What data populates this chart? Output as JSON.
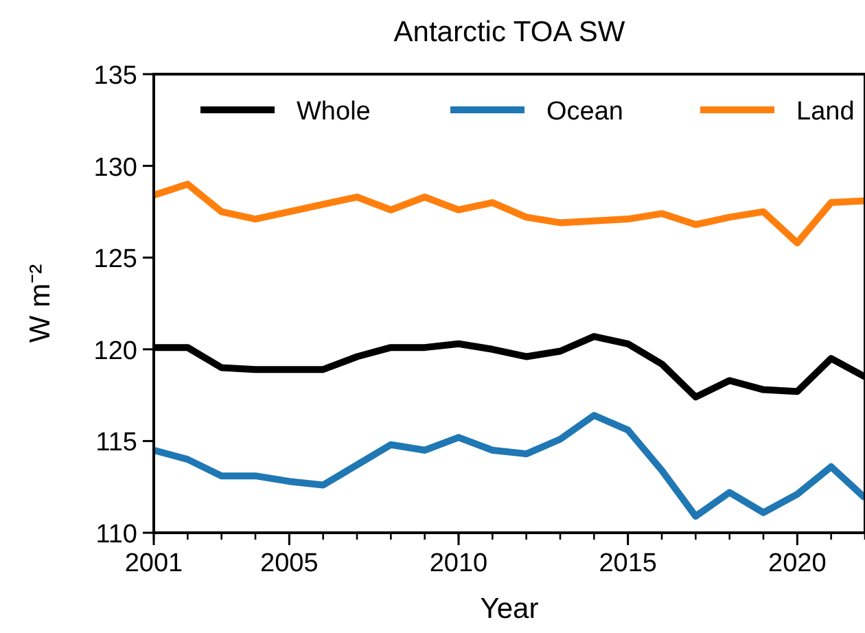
{
  "chart_data": {
    "type": "line",
    "title": "Antarctic TOA SW",
    "xlabel": "Year",
    "ylabel": "W m⁻²",
    "x": [
      2001,
      2002,
      2003,
      2004,
      2005,
      2006,
      2007,
      2008,
      2009,
      2010,
      2011,
      2012,
      2013,
      2014,
      2015,
      2016,
      2017,
      2018,
      2019,
      2020,
      2021,
      2022
    ],
    "xlim": [
      2001,
      2022
    ],
    "xticks": [
      2001,
      2005,
      2010,
      2015,
      2020
    ],
    "ylim": [
      110,
      135
    ],
    "yticks": [
      110,
      115,
      120,
      125,
      130,
      135
    ],
    "grid": false,
    "legend": "top",
    "line_style": "solid",
    "series": [
      {
        "name": "Whole",
        "color": "#000000",
        "values": [
          120.1,
          120.1,
          119.0,
          118.9,
          118.9,
          118.9,
          119.6,
          120.1,
          120.1,
          120.3,
          120.0,
          119.6,
          119.9,
          120.7,
          120.3,
          119.2,
          117.4,
          118.3,
          117.8,
          117.7,
          119.5,
          118.5
        ]
      },
      {
        "name": "Ocean",
        "color": "#1f77b4",
        "values": [
          114.5,
          114.0,
          113.1,
          113.1,
          112.8,
          112.6,
          113.7,
          114.8,
          114.5,
          115.2,
          114.5,
          114.3,
          115.1,
          116.4,
          115.6,
          113.4,
          110.9,
          112.2,
          111.1,
          112.1,
          113.6,
          111.9
        ]
      },
      {
        "name": "Land",
        "color": "#ff7f0e",
        "values": [
          128.4,
          129.0,
          127.5,
          127.1,
          127.5,
          127.9,
          128.3,
          127.6,
          128.3,
          127.6,
          128.0,
          127.2,
          126.9,
          127.0,
          127.1,
          127.4,
          126.8,
          127.2,
          127.5,
          125.8,
          128.0,
          128.1
        ]
      }
    ]
  }
}
